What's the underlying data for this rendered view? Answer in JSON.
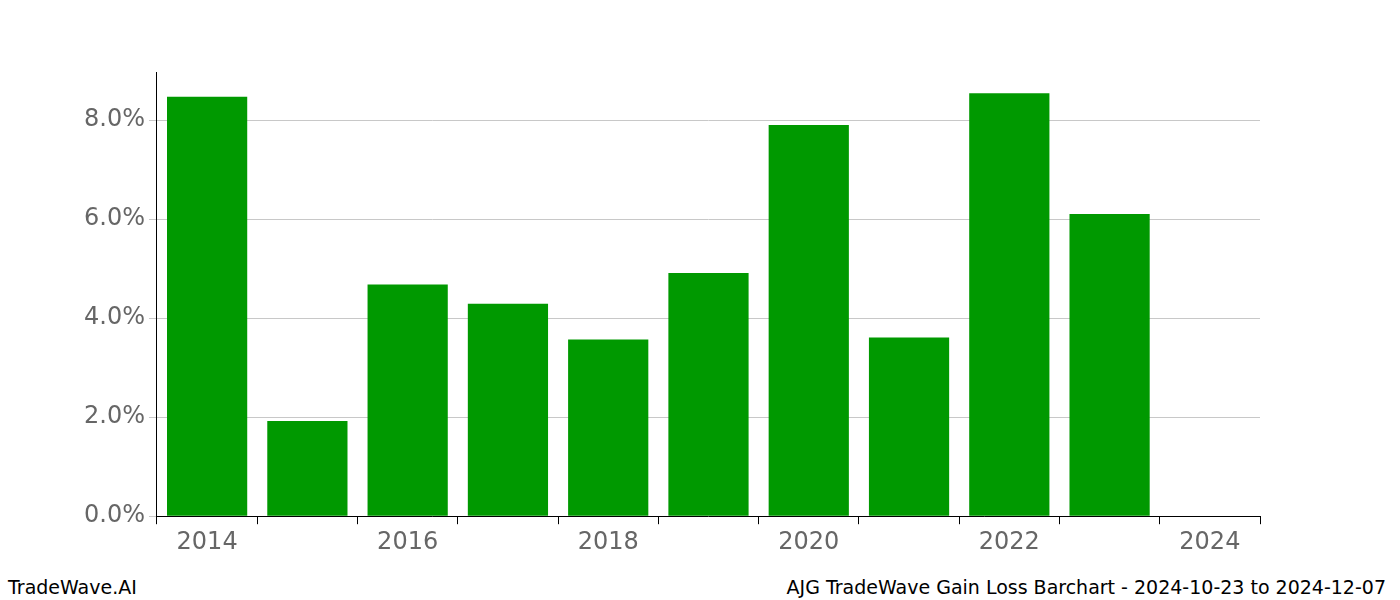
{
  "chart_data": {
    "type": "bar",
    "title": "AJG TradeWave Gain Loss Barchart - 2024-10-23 to 2024-12-07",
    "annotations": [
      "TradeWave.AI"
    ],
    "categories": [
      "2014",
      null,
      "2016",
      null,
      "2018",
      null,
      "2020",
      null,
      "2022",
      null,
      "2024"
    ],
    "values": [
      8.47,
      1.92,
      4.68,
      4.29,
      3.57,
      4.91,
      7.9,
      3.61,
      8.54,
      6.1,
      null
    ],
    "color": "#009900",
    "ylim": [
      0,
      8.97
    ],
    "yticks": [
      {
        "value": 0,
        "label": "0.0%"
      },
      {
        "value": 2,
        "label": "2.0%"
      },
      {
        "value": 4,
        "label": "4.0%"
      },
      {
        "value": 6,
        "label": "6.0%"
      },
      {
        "value": 8,
        "label": "8.0%"
      }
    ],
    "grid": true
  }
}
